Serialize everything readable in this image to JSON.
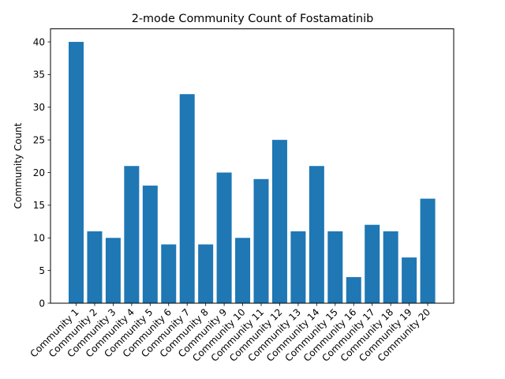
{
  "chart_data": {
    "type": "bar",
    "title": "2-mode Community Count of Fostamatinib",
    "xlabel": "",
    "ylabel": "Community Count",
    "categories": [
      "Community 1",
      "Community 2",
      "Community 3",
      "Community 4",
      "Community 5",
      "Community 6",
      "Community 7",
      "Community 8",
      "Community 9",
      "Community 10",
      "Community 11",
      "Community 12",
      "Community 13",
      "Community 14",
      "Community 15",
      "Community 16",
      "Community 17",
      "Community 18",
      "Community 19",
      "Community 20"
    ],
    "values": [
      40,
      11,
      10,
      21,
      18,
      9,
      32,
      9,
      20,
      10,
      19,
      25,
      11,
      21,
      11,
      4,
      12,
      11,
      7,
      16
    ],
    "ylim": [
      0,
      42
    ],
    "yticks": [
      0,
      5,
      10,
      15,
      20,
      25,
      30,
      35,
      40
    ],
    "bar_color": "#1f77b4",
    "grid": false,
    "legend": "none"
  }
}
